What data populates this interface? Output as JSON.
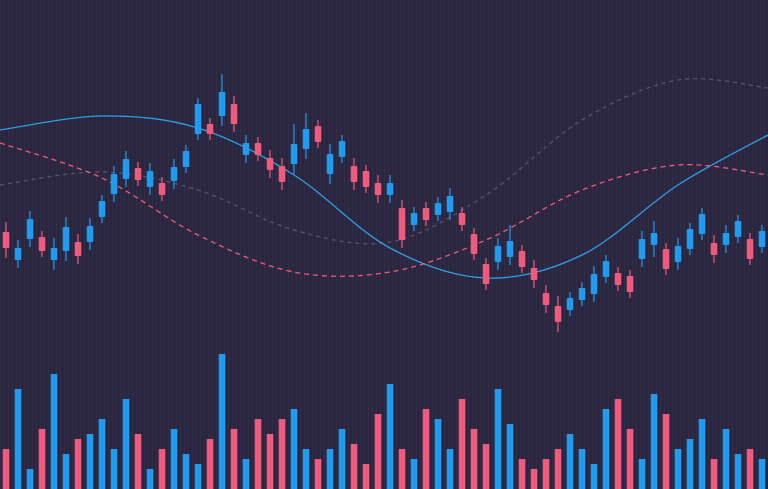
{
  "chart_data": {
    "type": "candlestick",
    "background": "#2a2640",
    "up_color": "#1e9bf0",
    "down_color": "#f0587c",
    "xlim": [
      -0.5,
      63.5
    ],
    "ylim": [
      0,
      489
    ],
    "y2lim": [
      0,
      489
    ],
    "candles": {
      "open": [
        257,
        229,
        250,
        252,
        229,
        238,
        247,
        247,
        272,
        295,
        310,
        321,
        302,
        306,
        308,
        322,
        355,
        365,
        373,
        385,
        334,
        346,
        331,
        323,
        325,
        340,
        363,
        315,
        332,
        323,
        318,
        306,
        294,
        281,
        264,
        281,
        274,
        277,
        276,
        255,
        225,
        227,
        232,
        238,
        221,
        196,
        183,
        179,
        189,
        195,
        212,
        216,
        213,
        230,
        244,
        240,
        227,
        240,
        255,
        246,
        244,
        252,
        250,
        242
      ],
      "high": [
        267,
        249,
        278,
        258,
        251,
        272,
        255,
        271,
        294,
        323,
        338,
        327,
        326,
        312,
        330,
        344,
        391,
        371,
        415,
        393,
        354,
        352,
        339,
        331,
        365,
        376,
        369,
        345,
        354,
        331,
        324,
        314,
        314,
        289,
        282,
        287,
        292,
        301,
        282,
        261,
        231,
        251,
        264,
        244,
        229,
        204,
        193,
        197,
        207,
        223,
        234,
        222,
        219,
        258,
        268,
        246,
        251,
        266,
        281,
        254,
        264,
        274,
        256,
        264
      ],
      "low": [
        231,
        221,
        242,
        232,
        219,
        228,
        225,
        239,
        266,
        287,
        302,
        303,
        294,
        288,
        300,
        316,
        349,
        349,
        363,
        357,
        326,
        328,
        311,
        299,
        315,
        330,
        341,
        305,
        326,
        299,
        296,
        286,
        286,
        241,
        258,
        263,
        268,
        269,
        258,
        229,
        199,
        219,
        224,
        216,
        201,
        176,
        157,
        173,
        183,
        187,
        206,
        198,
        191,
        222,
        232,
        214,
        219,
        234,
        249,
        226,
        236,
        246,
        224,
        236
      ],
      "close": [
        241,
        241,
        270,
        238,
        241,
        262,
        233,
        263,
        288,
        315,
        330,
        309,
        318,
        294,
        322,
        338,
        385,
        355,
        397,
        365,
        346,
        334,
        319,
        307,
        345,
        360,
        347,
        335,
        348,
        307,
        302,
        294,
        306,
        249,
        276,
        269,
        286,
        293,
        264,
        235,
        205,
        243,
        248,
        222,
        209,
        184,
        167,
        191,
        201,
        215,
        228,
        204,
        197,
        250,
        256,
        220,
        243,
        260,
        275,
        234,
        256,
        268,
        230,
        258
      ]
    },
    "volume": {
      "axis": "y2",
      "values": [
        40,
        100,
        20,
        60,
        115,
        35,
        50,
        55,
        70,
        40,
        90,
        55,
        20,
        40,
        60,
        35,
        25,
        50,
        135,
        60,
        30,
        70,
        55,
        70,
        80,
        40,
        30,
        40,
        60,
        45,
        25,
        75,
        105,
        40,
        30,
        80,
        70,
        40,
        90,
        60,
        45,
        100,
        65,
        30,
        20,
        30,
        40,
        55,
        40,
        25,
        80,
        90,
        60,
        30,
        95,
        75,
        40,
        50,
        70,
        30,
        60,
        35,
        40,
        30
      ]
    },
    "lines": [
      {
        "color": "#2a9fe6",
        "dash": "none",
        "opacity": 1,
        "x": [
          -0.5,
          8,
          16,
          24,
          32,
          40,
          48,
          56,
          63.5
        ],
        "values": [
          359,
          373,
          361,
          314,
          241,
          211,
          234,
          304,
          354
        ]
      },
      {
        "color": "#f0587c",
        "dash": "5 4",
        "opacity": 1,
        "x": [
          -0.5,
          8,
          16,
          24,
          32,
          40,
          48,
          56,
          63.5
        ],
        "values": [
          346,
          311,
          254,
          217,
          217,
          249,
          299,
          324,
          314
        ]
      },
      {
        "color": "#8a86a8",
        "dash": "4 4",
        "opacity": 0.45,
        "x": [
          -0.5,
          8,
          16,
          24,
          32,
          40,
          48,
          56,
          63.5
        ],
        "values": [
          304,
          317,
          299,
          259,
          247,
          294,
          369,
          409,
          401
        ]
      }
    ]
  }
}
